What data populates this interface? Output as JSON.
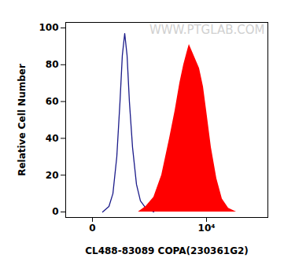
{
  "chart_data": {
    "type": "histogram",
    "x_label": "CL488-83089 COPA(230361G2)",
    "y_label": "Relative Cell Number",
    "annotations": [
      "WWW.PTGLAB.COM"
    ],
    "log": "x",
    "xlim": [
      -195,
      120700
    ],
    "xticks": [
      0,
      {
        "value": 10000,
        "label": "10⁴"
      }
    ],
    "ylim": [
      -3,
      103
    ],
    "yticks": [
      0,
      20,
      40,
      60,
      80,
      100
    ],
    "grid": false,
    "series": [
      {
        "type": "line",
        "color": "#1c1c8a",
        "x": [
          51,
          95,
          129,
          168,
          205,
          235,
          269,
          306,
          346,
          407,
          494,
          597,
          771,
          1097
        ],
        "values": [
          0,
          3,
          10,
          30,
          60,
          85,
          97,
          85,
          60,
          35,
          15,
          6,
          2,
          0
        ]
      },
      {
        "type": "area",
        "color": "#ff0000",
        "x": [
          540,
          771,
          1097,
          1546,
          2162,
          2728,
          3322,
          3912,
          4604,
          4914,
          5415,
          6366,
          7481,
          8794,
          10000,
          12130,
          15180,
          18980,
          24510,
          33730
        ],
        "values": [
          0,
          3,
          8,
          20,
          40,
          55,
          70,
          80,
          88,
          91,
          88,
          83,
          78,
          68,
          55,
          35,
          18,
          7,
          2,
          0
        ]
      }
    ]
  }
}
